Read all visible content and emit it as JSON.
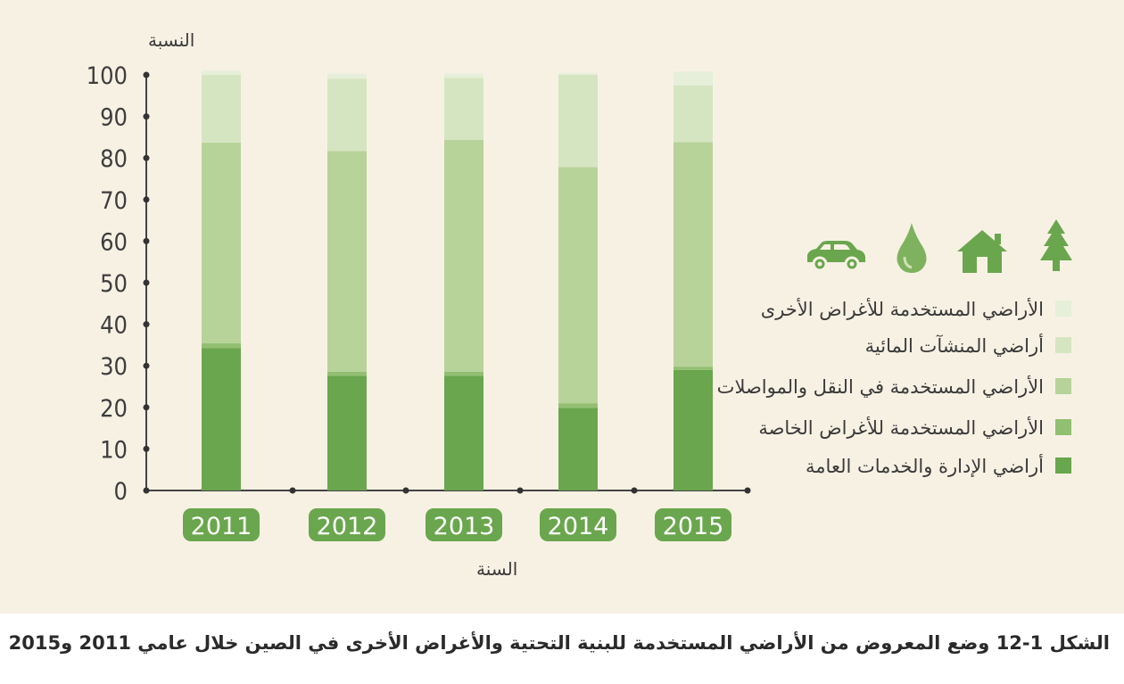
{
  "chart_data": {
    "type": "bar",
    "stacked": true,
    "ylabel": "النسبة",
    "xlabel": "السنة",
    "ylim": [
      0,
      100
    ],
    "yticks": [
      0,
      10,
      20,
      30,
      40,
      50,
      60,
      70,
      80,
      90,
      100
    ],
    "categories": [
      "2011",
      "2012",
      "2013",
      "2014",
      "2015"
    ],
    "series": [
      {
        "name": "أراضي الإدارة والخدمات العامة",
        "color": "#6aa64d",
        "values": [
          34.3,
          27.6,
          27.6,
          19.9,
          29.0
        ]
      },
      {
        "name": "الأراضي المستخدمة للأغراض الخاصة",
        "color": "#92bf72",
        "values": [
          1.1,
          1.0,
          1.0,
          1.1,
          0.8
        ]
      },
      {
        "name": "الأراضي المستخدمة في النقل والمواصلات",
        "color": "#b7d39a",
        "values": [
          48.3,
          53.1,
          55.8,
          56.8,
          54.0
        ]
      },
      {
        "name": "أراضي المنشآت المائية",
        "color": "#d6e5c1",
        "values": [
          16.3,
          17.4,
          14.9,
          22.2,
          13.7
        ]
      },
      {
        "name": "الأراضي المستخدمة للأغراض الأخرى",
        "color": "#e6efd9",
        "values": [
          1.0,
          1.2,
          1.0,
          0.4,
          3.3
        ]
      }
    ],
    "legend_position": "right",
    "icons": [
      "car-icon",
      "water-drop-icon",
      "house-icon",
      "tree-icon"
    ],
    "accent_color": "#6aa64d"
  },
  "caption": "الشكل 1-12 وضع المعروض من الأراضي المستخدمة للبنية التحتية والأغراض الأخرى في الصين خلال عامي 2011 و2015"
}
